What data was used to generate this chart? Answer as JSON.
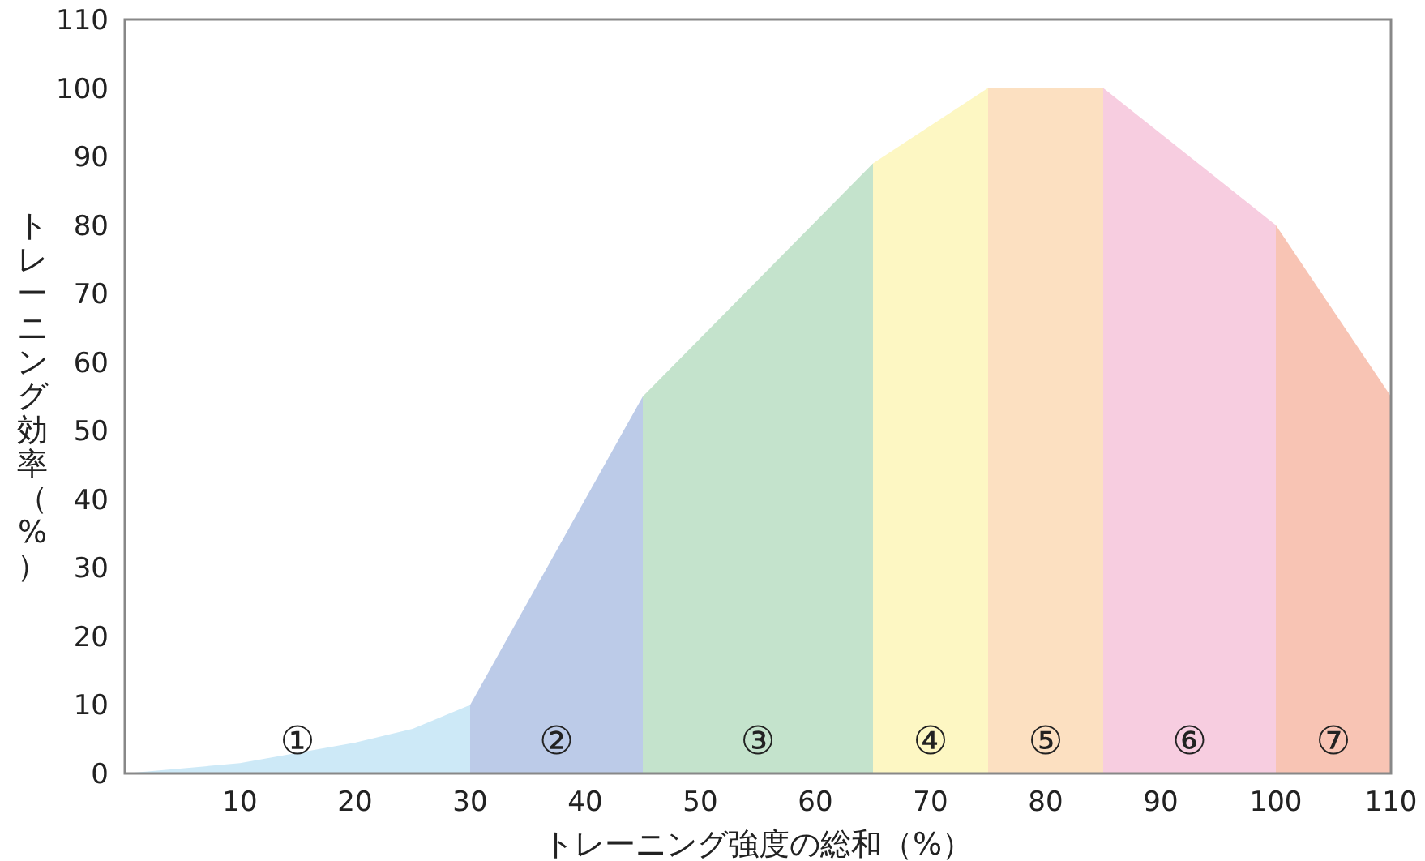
{
  "chart_data": {
    "type": "area",
    "xlabel": "トレーニング強度の総和（%）",
    "ylabel": "トレーニング効率（%）",
    "xlim": [
      0,
      110
    ],
    "ylim": [
      0,
      110
    ],
    "xticks": [
      10,
      20,
      30,
      40,
      50,
      60,
      70,
      80,
      90,
      100,
      110
    ],
    "yticks": [
      0,
      10,
      20,
      30,
      40,
      50,
      60,
      70,
      80,
      90,
      100,
      110
    ],
    "grid": false,
    "legend": false,
    "series": [
      {
        "name": "①",
        "color": "#cde9f7",
        "x": [
          0,
          10,
          20,
          25,
          30
        ],
        "values": [
          0,
          1.5,
          4.5,
          6.5,
          10
        ]
      },
      {
        "name": "②",
        "color": "#bccbe8",
        "x": [
          30,
          45
        ],
        "values": [
          10,
          55
        ]
      },
      {
        "name": "③",
        "color": "#c4e3cc",
        "x": [
          45,
          55,
          65
        ],
        "values": [
          55,
          72,
          89
        ]
      },
      {
        "name": "④",
        "color": "#fdf7c3",
        "x": [
          65,
          75
        ],
        "values": [
          89,
          100
        ]
      },
      {
        "name": "⑤",
        "color": "#fce0c1",
        "x": [
          75,
          85
        ],
        "values": [
          100,
          100
        ]
      },
      {
        "name": "⑥",
        "color": "#f7cde0",
        "x": [
          85,
          100
        ],
        "values": [
          100,
          80
        ]
      },
      {
        "name": "⑦",
        "color": "#f8c4b4",
        "x": [
          100,
          110
        ],
        "values": [
          80,
          55
        ]
      }
    ]
  }
}
